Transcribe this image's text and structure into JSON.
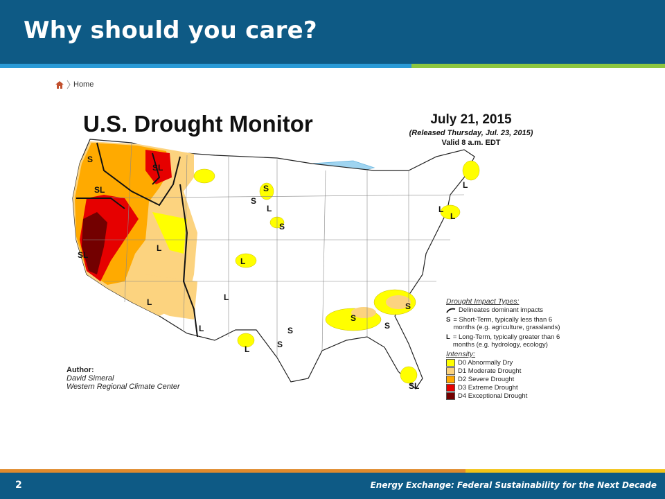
{
  "slide": {
    "title": "Why should you care?",
    "number": "2",
    "footer": "Energy Exchange: Federal Sustainability for the Next Decade",
    "colors": {
      "header": "#0e5a85",
      "stripe_blue": "#2a9ad6",
      "stripe_green": "#8dc63f",
      "stripe_orange": "#e08a2c",
      "stripe_yellow": "#f2c318"
    }
  },
  "breadcrumb": {
    "icon": "home-icon",
    "label": "Home"
  },
  "map": {
    "title": "U.S. Drought Monitor",
    "date": "July 21, 2015",
    "released": "(Released Thursday, Jul. 23, 2015)",
    "valid": "Valid 8 a.m. EDT",
    "author": {
      "label": "Author:",
      "name": "David Simeral",
      "org": "Western Regional Climate Center"
    },
    "impact": {
      "header": "Drought Impact Types:",
      "line": "Delineates dominant impacts",
      "short": {
        "key": "S",
        "text": "= Short-Term, typically less than 6 months (e.g. agriculture, grasslands)"
      },
      "long": {
        "key": "L",
        "text": "= Long-Term, typically greater than 6 months (e.g. hydrology, ecology)"
      }
    },
    "intensity": {
      "header": "Intensity:",
      "levels": [
        {
          "label": "D0 Abnormally Dry",
          "color": "#ffff00"
        },
        {
          "label": "D1 Moderate Drought",
          "color": "#fcd37f"
        },
        {
          "label": "D2 Severe Drought",
          "color": "#ffaa00"
        },
        {
          "label": "D3 Extreme Drought",
          "color": "#e60000"
        },
        {
          "label": "D4 Exceptional Drought",
          "color": "#730000"
        }
      ]
    },
    "labels": [
      "S",
      "SL",
      "SL",
      "SL",
      "L",
      "L",
      "L",
      "L",
      "S",
      "S",
      "S",
      "L",
      "L",
      "S",
      "S",
      "L",
      "S",
      "S",
      "S",
      "L",
      "L",
      "L",
      "SL"
    ]
  }
}
